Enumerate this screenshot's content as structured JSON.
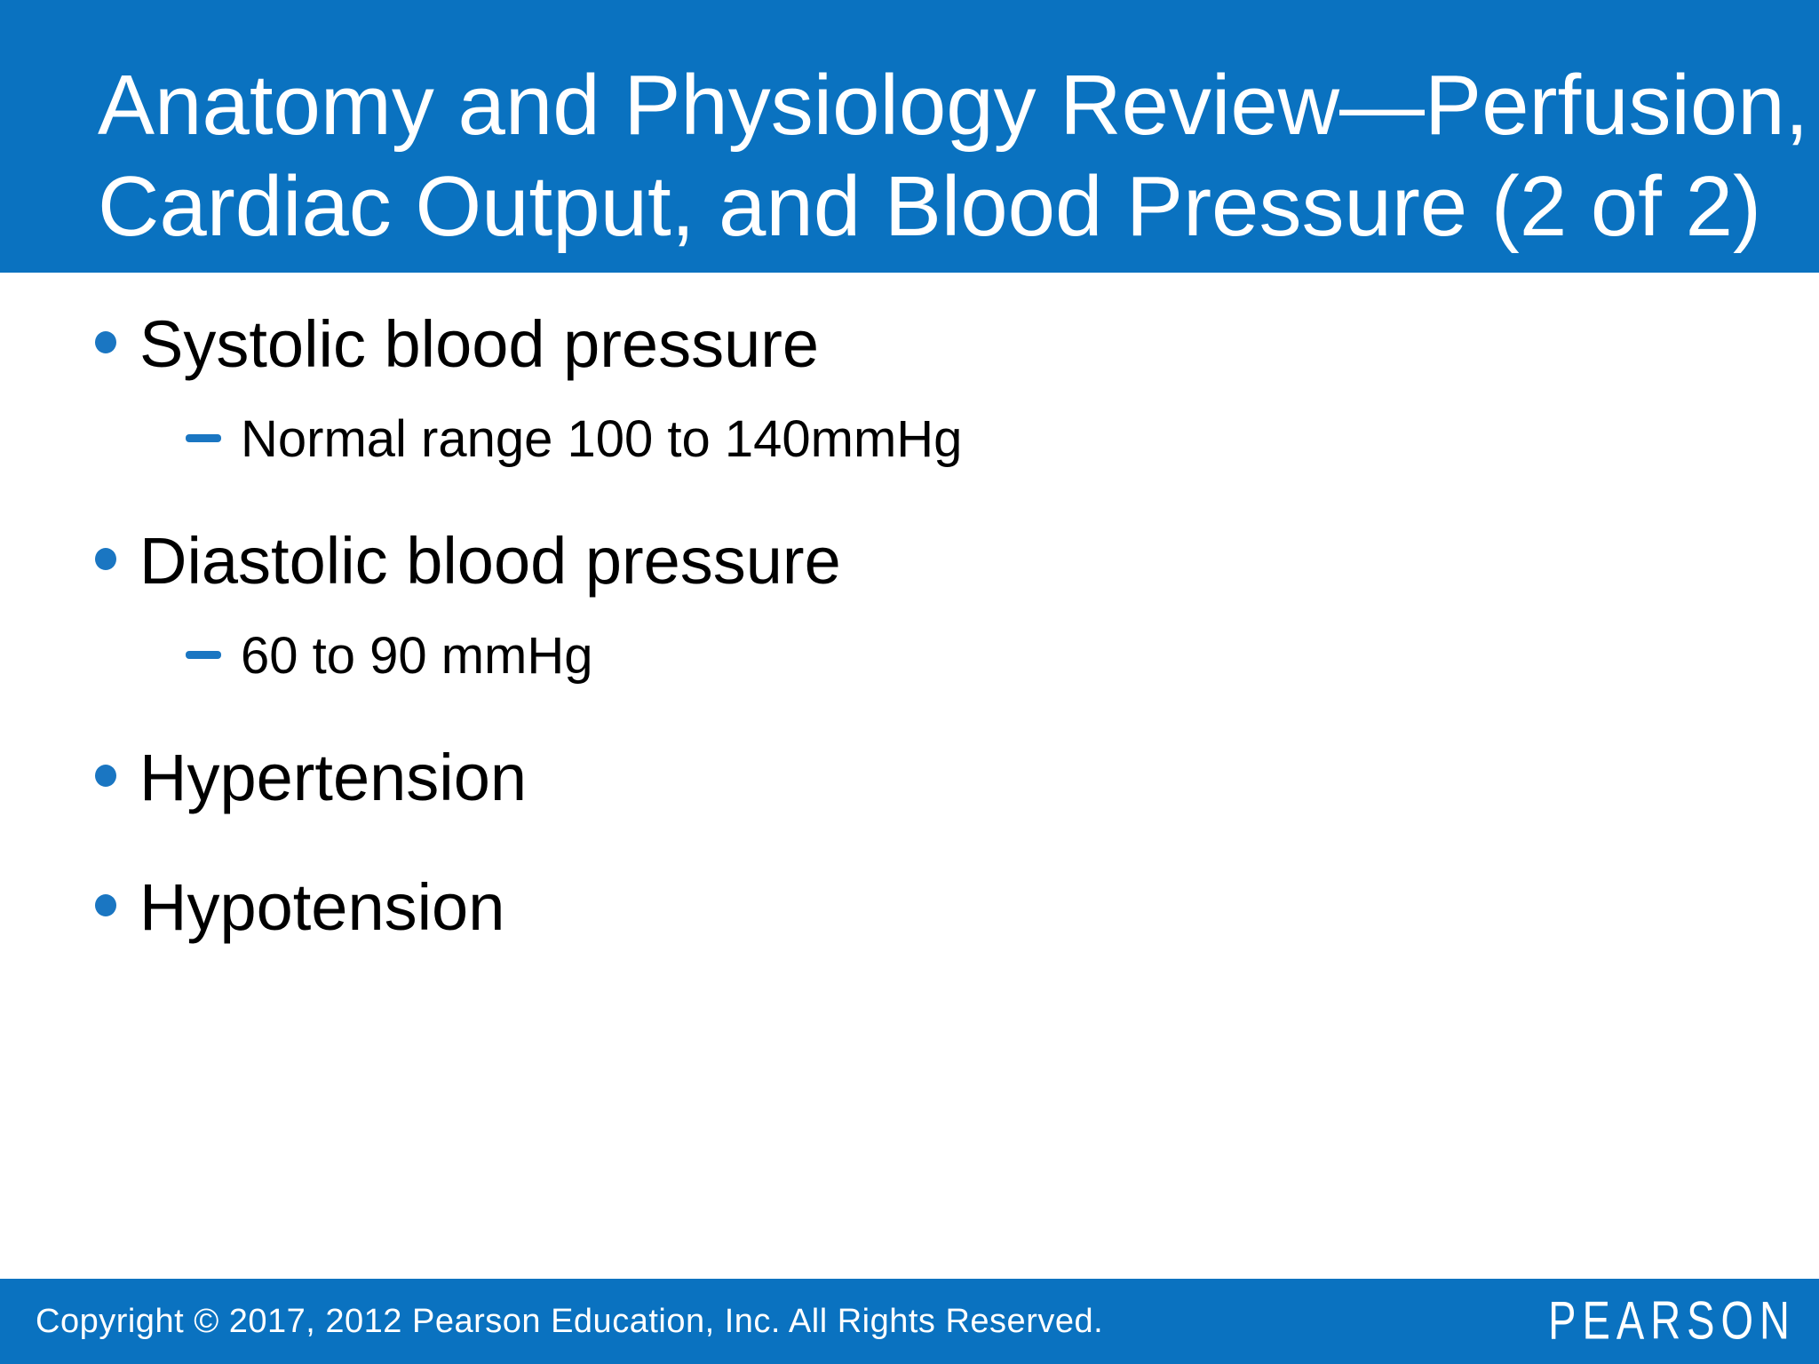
{
  "title": {
    "line1": "Anatomy and Physiology Review—Perfusion,",
    "line2": "Cardiac Output, and Blood Pressure (2 of 2)"
  },
  "bullets": {
    "items": [
      {
        "level": 1,
        "marker": "dot-icon",
        "text": "Systolic blood pressure"
      },
      {
        "level": 2,
        "marker": "dash-icon",
        "text": "Normal range 100 to 140mmHg"
      },
      {
        "level": 1,
        "marker": "dot-icon",
        "text": "Diastolic blood pressure"
      },
      {
        "level": 2,
        "marker": "dash-icon",
        "text": "60 to 90 mmHg"
      },
      {
        "level": 1,
        "marker": "dot-icon",
        "text": "Hypertension"
      },
      {
        "level": 1,
        "marker": "dot-icon",
        "text": "Hypotension"
      }
    ]
  },
  "footer": {
    "copyright": "Copyright © 2017, 2012 Pearson Education, Inc. All Rights Reserved.",
    "brand": "PEARSON"
  },
  "colors": {
    "band_blue": "#0a72c0",
    "bullet_accent": "#1a76c2",
    "title_text": "#ffffff",
    "body_text": "#000000"
  }
}
